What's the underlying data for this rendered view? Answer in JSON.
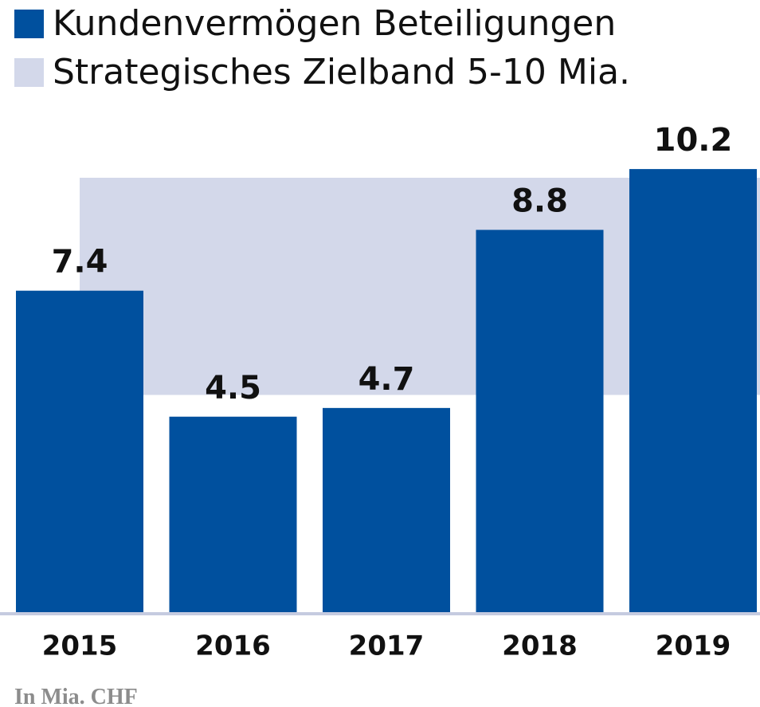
{
  "chart_data": {
    "type": "bar",
    "categories": [
      "2015",
      "2016",
      "2017",
      "2018",
      "2019"
    ],
    "series": [
      {
        "name": "Kundenvermögen Beteiligungen",
        "color": "#00509e",
        "values": [
          7.4,
          4.5,
          4.7,
          8.8,
          10.2
        ]
      }
    ],
    "band": {
      "name": "Strategisches Zielband 5-10 Mia.",
      "color": "#d3d8ea",
      "range": [
        5,
        10
      ]
    },
    "ylim": [
      0,
      12
    ],
    "note": "In Mia. CHF"
  }
}
